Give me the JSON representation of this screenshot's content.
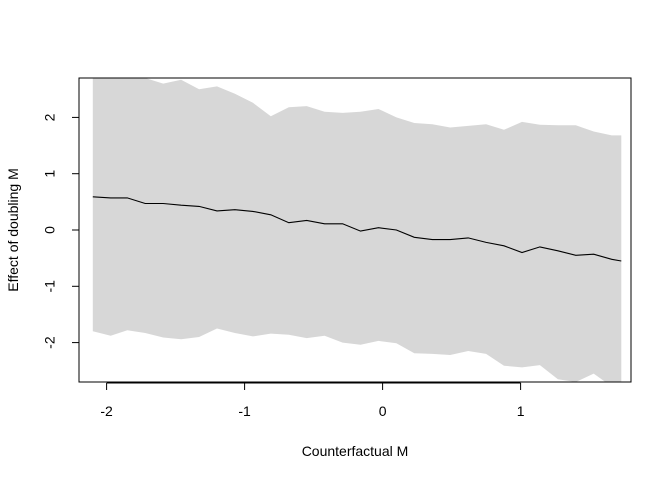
{
  "chart_data": {
    "type": "line",
    "title": "",
    "xlabel": "Counterfactual M",
    "ylabel": "Effect of doubling M",
    "xlim": [
      -2.2,
      1.8
    ],
    "ylim": [
      -2.7,
      2.7
    ],
    "xticks": [
      -2,
      -1,
      0,
      1
    ],
    "yticks": [
      -2,
      -1,
      0,
      1,
      2
    ],
    "x": [
      -2.1,
      -1.97,
      -1.85,
      -1.72,
      -1.59,
      -1.46,
      -1.33,
      -1.2,
      -1.07,
      -0.94,
      -0.81,
      -0.68,
      -0.55,
      -0.42,
      -0.29,
      -0.16,
      -0.03,
      0.1,
      0.23,
      0.36,
      0.49,
      0.62,
      0.75,
      0.88,
      1.01,
      1.14,
      1.27,
      1.4,
      1.53,
      1.66,
      1.73
    ],
    "series": [
      {
        "values": [
          0.59,
          0.57,
          0.57,
          0.47,
          0.47,
          0.44,
          0.42,
          0.34,
          0.36,
          0.33,
          0.27,
          0.13,
          0.17,
          0.11,
          0.11,
          -0.02,
          0.04,
          0.0,
          -0.13,
          -0.17,
          -0.17,
          -0.14,
          -0.22,
          -0.28,
          -0.4,
          -0.3,
          -0.37,
          -0.45,
          -0.43,
          -0.52,
          -0.55
        ]
      }
    ],
    "band": {
      "upper": [
        2.9,
        2.9,
        2.9,
        2.7,
        2.6,
        2.67,
        2.5,
        2.55,
        2.42,
        2.26,
        2.02,
        2.18,
        2.2,
        2.1,
        2.08,
        2.1,
        2.15,
        2.0,
        1.9,
        1.88,
        1.82,
        1.85,
        1.88,
        1.78,
        1.92,
        1.87,
        1.86,
        1.86,
        1.75,
        1.68,
        1.68
      ],
      "lower": [
        -1.8,
        -1.88,
        -1.78,
        -1.83,
        -1.91,
        -1.94,
        -1.9,
        -1.75,
        -1.83,
        -1.89,
        -1.84,
        -1.86,
        -1.92,
        -1.88,
        -2.0,
        -2.04,
        -1.97,
        -2.01,
        -2.19,
        -2.2,
        -2.22,
        -2.15,
        -2.2,
        -2.41,
        -2.44,
        -2.4,
        -2.65,
        -2.7,
        -2.55,
        -2.78,
        -2.78
      ]
    },
    "colors": {
      "band": "#d7d7d7",
      "line": "#000000",
      "axis": "#000000"
    },
    "grid": false,
    "legend": "none"
  }
}
